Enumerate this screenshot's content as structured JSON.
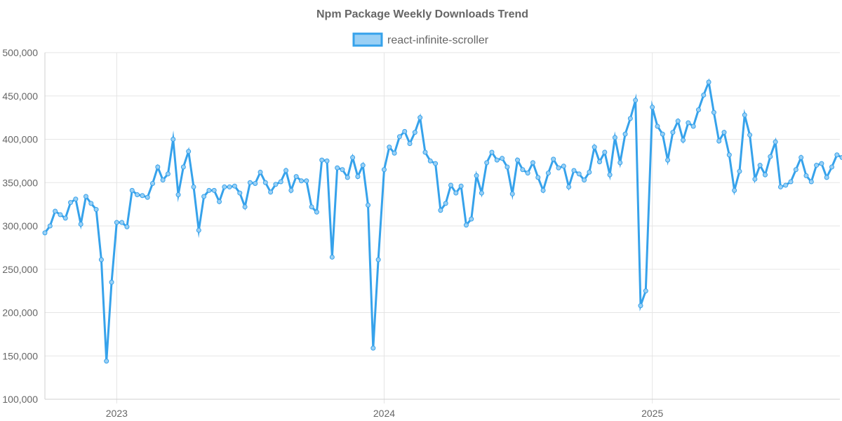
{
  "chart_data": {
    "type": "line",
    "title": "Npm Package Weekly Downloads Trend",
    "xlabel": "",
    "ylabel": "",
    "ylim": [
      100000,
      500000
    ],
    "y_ticks": [
      100000,
      150000,
      200000,
      250000,
      300000,
      350000,
      400000,
      450000,
      500000
    ],
    "y_tick_labels": [
      "100,000",
      "150,000",
      "200,000",
      "250,000",
      "300,000",
      "350,000",
      "400,000",
      "450,000",
      "500,000"
    ],
    "x_ticks": [
      {
        "x": "2023-01-01",
        "label": "2023"
      },
      {
        "x": "2024-01-01",
        "label": "2024"
      },
      {
        "x": "2025-01-01",
        "label": "2025"
      }
    ],
    "xlim": [
      "2022-09-25",
      "2025-09-14"
    ],
    "grid": true,
    "legend_position": "top",
    "colors": {
      "line": "#36a2eb",
      "fill": "#9ad0f5",
      "grid": "#e5e5e5",
      "text": "#666666"
    },
    "series": [
      {
        "name": "react-infinite-scroller",
        "points": [
          [
            "2022-09-25",
            292000
          ],
          [
            "2022-10-02",
            300000
          ],
          [
            "2022-10-09",
            317000
          ],
          [
            "2022-10-16",
            313000
          ],
          [
            "2022-10-23",
            309000
          ],
          [
            "2022-10-30",
            327000
          ],
          [
            "2022-11-06",
            331000
          ],
          [
            "2022-11-13",
            302000
          ],
          [
            "2022-11-20",
            334000
          ],
          [
            "2022-11-27",
            326000
          ],
          [
            "2022-12-04",
            319000
          ],
          [
            "2022-12-11",
            261000
          ],
          [
            "2022-12-18",
            144000
          ],
          [
            "2022-12-25",
            235000
          ],
          [
            "2023-01-01",
            304000
          ],
          [
            "2023-01-08",
            304000
          ],
          [
            "2023-01-15",
            299000
          ],
          [
            "2023-01-22",
            341000
          ],
          [
            "2023-01-29",
            336000
          ],
          [
            "2023-02-05",
            335000
          ],
          [
            "2023-02-12",
            333000
          ],
          [
            "2023-02-19",
            349000
          ],
          [
            "2023-02-26",
            368000
          ],
          [
            "2023-03-05",
            353000
          ],
          [
            "2023-03-12",
            360000
          ],
          [
            "2023-03-19",
            400000
          ],
          [
            "2023-03-26",
            336000
          ],
          [
            "2023-04-02",
            368000
          ],
          [
            "2023-04-09",
            386000
          ],
          [
            "2023-04-16",
            345000
          ],
          [
            "2023-04-23",
            295000
          ],
          [
            "2023-04-30",
            334000
          ],
          [
            "2023-05-07",
            341000
          ],
          [
            "2023-05-14",
            341000
          ],
          [
            "2023-05-21",
            328000
          ],
          [
            "2023-05-28",
            345000
          ],
          [
            "2023-06-04",
            345000
          ],
          [
            "2023-06-11",
            346000
          ],
          [
            "2023-06-18",
            338000
          ],
          [
            "2023-06-25",
            322000
          ],
          [
            "2023-07-02",
            350000
          ],
          [
            "2023-07-09",
            349000
          ],
          [
            "2023-07-16",
            362000
          ],
          [
            "2023-07-23",
            350000
          ],
          [
            "2023-07-30",
            339000
          ],
          [
            "2023-08-06",
            348000
          ],
          [
            "2023-08-13",
            351000
          ],
          [
            "2023-08-20",
            364000
          ],
          [
            "2023-08-27",
            341000
          ],
          [
            "2023-09-03",
            357000
          ],
          [
            "2023-09-10",
            352000
          ],
          [
            "2023-09-17",
            352000
          ],
          [
            "2023-09-24",
            322000
          ],
          [
            "2023-10-01",
            316000
          ],
          [
            "2023-10-08",
            376000
          ],
          [
            "2023-10-15",
            375000
          ],
          [
            "2023-10-22",
            264000
          ],
          [
            "2023-10-29",
            367000
          ],
          [
            "2023-11-05",
            365000
          ],
          [
            "2023-11-12",
            356000
          ],
          [
            "2023-11-19",
            379000
          ],
          [
            "2023-11-26",
            357000
          ],
          [
            "2023-12-03",
            370000
          ],
          [
            "2023-12-10",
            324000
          ],
          [
            "2023-12-17",
            159000
          ],
          [
            "2023-12-24",
            261000
          ],
          [
            "2024-01-01",
            365000
          ],
          [
            "2024-01-08",
            391000
          ],
          [
            "2024-01-15",
            384000
          ],
          [
            "2024-01-22",
            403000
          ],
          [
            "2024-01-29",
            409000
          ],
          [
            "2024-02-05",
            395000
          ],
          [
            "2024-02-12",
            408000
          ],
          [
            "2024-02-19",
            425000
          ],
          [
            "2024-02-26",
            385000
          ],
          [
            "2024-03-04",
            375000
          ],
          [
            "2024-03-11",
            372000
          ],
          [
            "2024-03-18",
            318000
          ],
          [
            "2024-03-25",
            326000
          ],
          [
            "2024-04-01",
            347000
          ],
          [
            "2024-04-08",
            338000
          ],
          [
            "2024-04-15",
            346000
          ],
          [
            "2024-04-22",
            301000
          ],
          [
            "2024-04-29",
            308000
          ],
          [
            "2024-05-06",
            358000
          ],
          [
            "2024-05-13",
            338000
          ],
          [
            "2024-05-20",
            373000
          ],
          [
            "2024-05-27",
            385000
          ],
          [
            "2024-06-03",
            376000
          ],
          [
            "2024-06-10",
            378000
          ],
          [
            "2024-06-17",
            368000
          ],
          [
            "2024-06-24",
            337000
          ],
          [
            "2024-07-01",
            376000
          ],
          [
            "2024-07-08",
            365000
          ],
          [
            "2024-07-15",
            361000
          ],
          [
            "2024-07-22",
            373000
          ],
          [
            "2024-07-29",
            356000
          ],
          [
            "2024-08-05",
            341000
          ],
          [
            "2024-08-12",
            361000
          ],
          [
            "2024-08-19",
            377000
          ],
          [
            "2024-08-26",
            367000
          ],
          [
            "2024-09-02",
            369000
          ],
          [
            "2024-09-09",
            345000
          ],
          [
            "2024-09-16",
            364000
          ],
          [
            "2024-09-23",
            360000
          ],
          [
            "2024-09-30",
            353000
          ],
          [
            "2024-10-07",
            362000
          ],
          [
            "2024-10-14",
            391000
          ],
          [
            "2024-10-21",
            374000
          ],
          [
            "2024-10-28",
            385000
          ],
          [
            "2024-11-04",
            359000
          ],
          [
            "2024-11-11",
            402000
          ],
          [
            "2024-11-18",
            373000
          ],
          [
            "2024-11-25",
            406000
          ],
          [
            "2024-12-02",
            424000
          ],
          [
            "2024-12-09",
            445000
          ],
          [
            "2024-12-16",
            208000
          ],
          [
            "2024-12-23",
            225000
          ],
          [
            "2025-01-01",
            437000
          ],
          [
            "2025-01-08",
            415000
          ],
          [
            "2025-01-15",
            406000
          ],
          [
            "2025-01-22",
            376000
          ],
          [
            "2025-01-29",
            408000
          ],
          [
            "2025-02-05",
            421000
          ],
          [
            "2025-02-12",
            399000
          ],
          [
            "2025-02-19",
            419000
          ],
          [
            "2025-02-26",
            415000
          ],
          [
            "2025-03-05",
            434000
          ],
          [
            "2025-03-12",
            451000
          ],
          [
            "2025-03-19",
            466000
          ],
          [
            "2025-03-26",
            431000
          ],
          [
            "2025-04-02",
            398000
          ],
          [
            "2025-04-09",
            408000
          ],
          [
            "2025-04-16",
            382000
          ],
          [
            "2025-04-23",
            341000
          ],
          [
            "2025-04-30",
            363000
          ],
          [
            "2025-05-07",
            428000
          ],
          [
            "2025-05-14",
            405000
          ],
          [
            "2025-05-21",
            354000
          ],
          [
            "2025-05-28",
            370000
          ],
          [
            "2025-06-04",
            359000
          ],
          [
            "2025-06-11",
            380000
          ],
          [
            "2025-06-18",
            397000
          ],
          [
            "2025-06-25",
            345000
          ],
          [
            "2025-07-02",
            347000
          ],
          [
            "2025-07-09",
            351000
          ],
          [
            "2025-07-16",
            365000
          ],
          [
            "2025-07-23",
            379000
          ],
          [
            "2025-07-30",
            358000
          ],
          [
            "2025-08-06",
            351000
          ],
          [
            "2025-08-13",
            370000
          ],
          [
            "2025-08-20",
            372000
          ],
          [
            "2025-08-27",
            356000
          ],
          [
            "2025-09-03",
            368000
          ],
          [
            "2025-09-10",
            382000
          ],
          [
            "2025-09-17",
            379000
          ]
        ]
      }
    ]
  }
}
